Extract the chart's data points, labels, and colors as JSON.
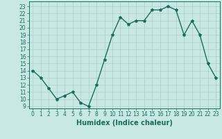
{
  "x": [
    0,
    1,
    2,
    3,
    4,
    5,
    6,
    7,
    8,
    9,
    10,
    11,
    12,
    13,
    14,
    15,
    16,
    17,
    18,
    19,
    20,
    21,
    22,
    23
  ],
  "y": [
    14,
    13,
    11.5,
    10,
    10.5,
    11,
    9.5,
    9,
    12,
    15.5,
    19,
    21.5,
    20.5,
    21,
    21,
    22.5,
    22.5,
    23,
    22.5,
    19,
    21,
    19,
    15,
    13
  ],
  "line_color": "#1a6b5e",
  "marker": "*",
  "marker_size": 3,
  "bg_color": "#c8e8e5",
  "grid_color": "#aacfcc",
  "xlabel": "Humidex (Indice chaleur)",
  "xlim": [
    -0.5,
    23.5
  ],
  "ylim": [
    8.7,
    23.7
  ],
  "yticks": [
    9,
    10,
    11,
    12,
    13,
    14,
    15,
    16,
    17,
    18,
    19,
    20,
    21,
    22,
    23
  ],
  "xticks": [
    0,
    1,
    2,
    3,
    4,
    5,
    6,
    7,
    8,
    9,
    10,
    11,
    12,
    13,
    14,
    15,
    16,
    17,
    18,
    19,
    20,
    21,
    22,
    23
  ],
  "tick_fontsize": 5.5,
  "label_fontsize": 7,
  "line_width": 1.0
}
